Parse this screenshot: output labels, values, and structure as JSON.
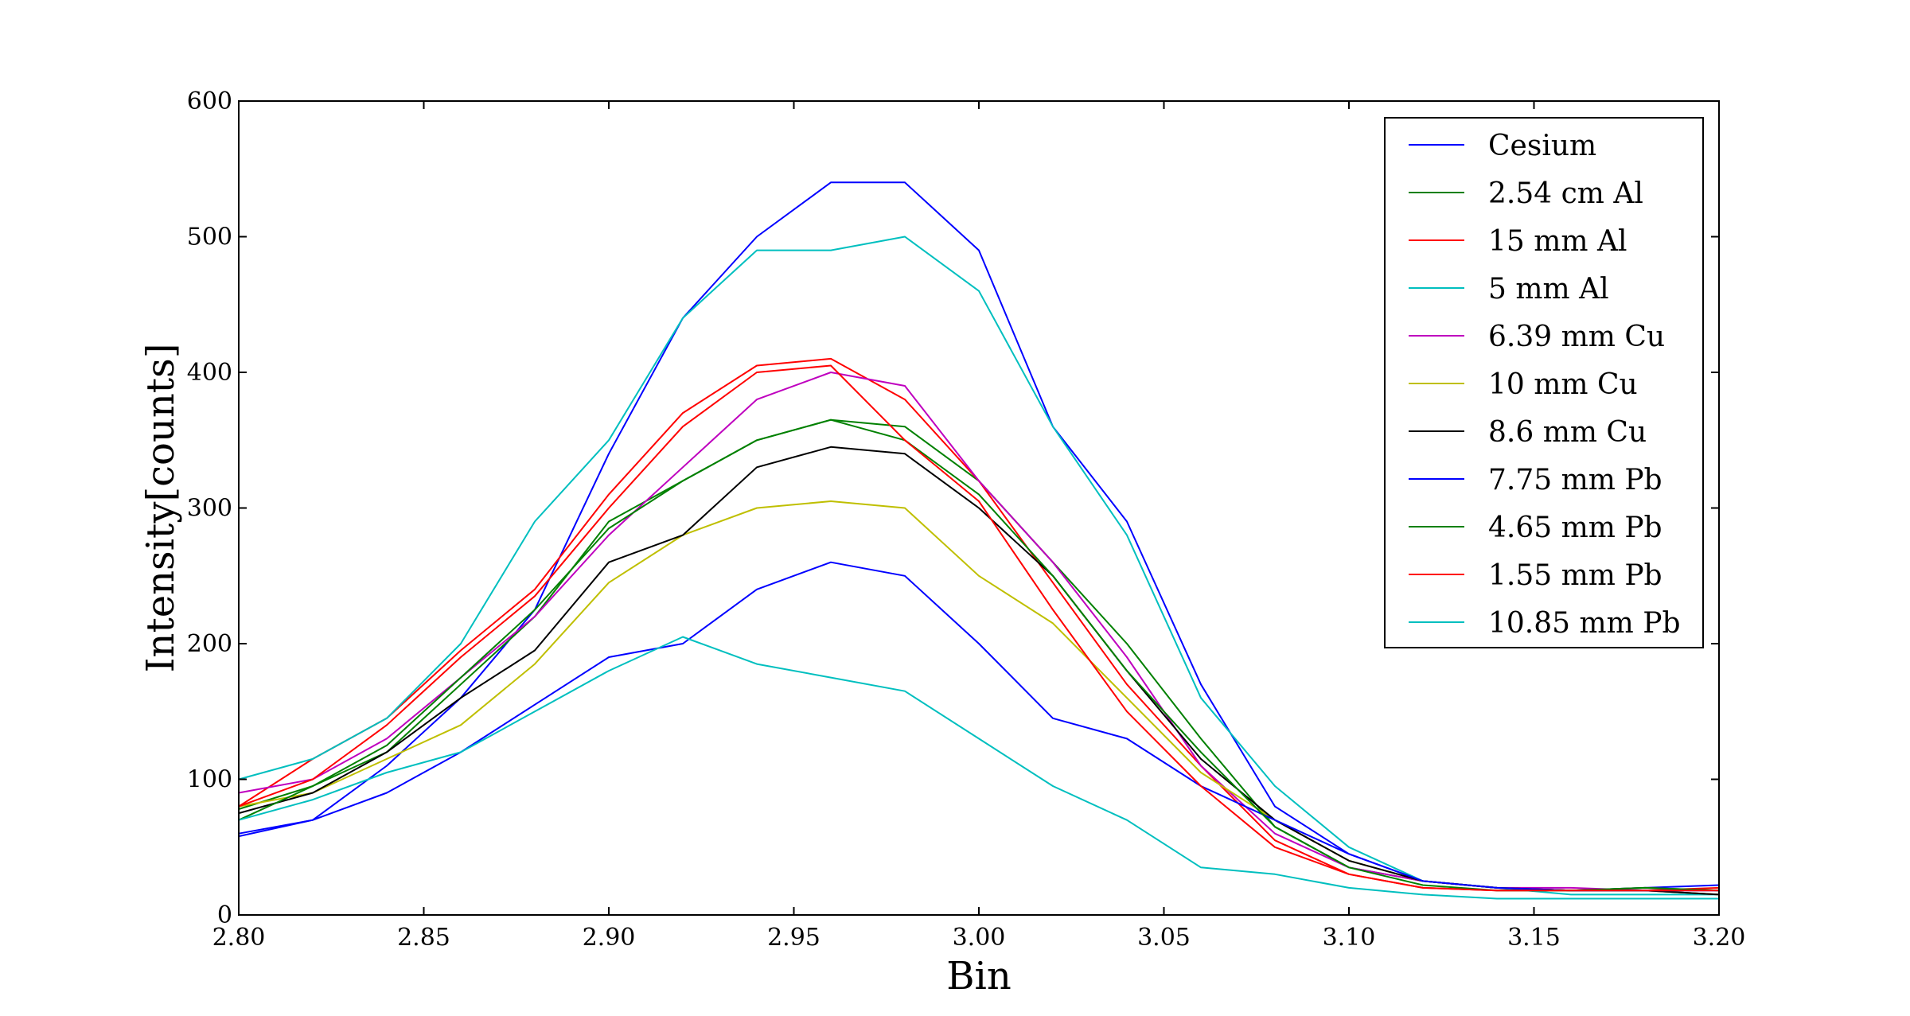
{
  "chart_data": {
    "type": "line",
    "xlabel": "Bin",
    "ylabel": "Intensity[counts]",
    "xlim": [
      2.8,
      3.2
    ],
    "ylim": [
      0,
      600
    ],
    "xticks": [
      "2.80",
      "2.85",
      "2.90",
      "2.95",
      "3.00",
      "3.05",
      "3.10",
      "3.15",
      "3.20"
    ],
    "yticks": [
      "0",
      "100",
      "200",
      "300",
      "400",
      "500",
      "600"
    ],
    "grid": false,
    "legend_position": "top-right",
    "x": [
      2.8,
      2.82,
      2.84,
      2.86,
      2.88,
      2.9,
      2.92,
      2.94,
      2.96,
      2.98,
      3.0,
      3.02,
      3.04,
      3.06,
      3.08,
      3.1,
      3.12,
      3.14,
      3.16,
      3.18,
      3.2
    ],
    "series": [
      {
        "name": "Cesium",
        "color": "#0000ff",
        "values": [
          58,
          70,
          110,
          160,
          225,
          340,
          440,
          500,
          540,
          540,
          490,
          360,
          290,
          170,
          80,
          45,
          25,
          20,
          18,
          20,
          22
        ]
      },
      {
        "name": "2.54 cm Al",
        "color": "#008000",
        "values": [
          78,
          95,
          120,
          170,
          220,
          290,
          320,
          350,
          365,
          360,
          320,
          260,
          200,
          130,
          65,
          35,
          25,
          20,
          18,
          20,
          18
        ]
      },
      {
        "name": "15 mm Al",
        "color": "#ff0000",
        "values": [
          80,
          115,
          145,
          195,
          240,
          310,
          370,
          405,
          410,
          380,
          320,
          245,
          170,
          110,
          55,
          30,
          20,
          18,
          18,
          18,
          20
        ]
      },
      {
        "name": "5 mm Al",
        "color": "#00bfbf",
        "values": [
          100,
          115,
          145,
          200,
          290,
          350,
          440,
          490,
          490,
          500,
          460,
          360,
          280,
          160,
          95,
          50,
          25,
          20,
          15,
          15,
          15
        ]
      },
      {
        "name": "6.39 mm Cu",
        "color": "#bf00bf",
        "values": [
          90,
          100,
          130,
          175,
          220,
          280,
          330,
          380,
          400,
          390,
          320,
          260,
          190,
          110,
          60,
          35,
          25,
          20,
          20,
          18,
          15
        ]
      },
      {
        "name": "10 mm Cu",
        "color": "#bfbf00",
        "values": [
          80,
          90,
          115,
          140,
          185,
          245,
          280,
          300,
          305,
          300,
          250,
          215,
          160,
          105,
          70,
          40,
          25,
          20,
          18,
          18,
          15
        ]
      },
      {
        "name": "8.6 mm Cu",
        "color": "#000000",
        "values": [
          75,
          90,
          120,
          160,
          195,
          260,
          280,
          330,
          345,
          340,
          300,
          250,
          180,
          115,
          70,
          40,
          25,
          20,
          18,
          18,
          15
        ]
      },
      {
        "name": "7.75 mm Pb",
        "color": "#0000ff",
        "values": [
          60,
          70,
          90,
          120,
          155,
          190,
          200,
          240,
          260,
          250,
          200,
          145,
          130,
          95,
          70,
          45,
          25,
          20,
          18,
          18,
          18
        ]
      },
      {
        "name": "4.65 mm Pb",
        "color": "#008000",
        "values": [
          70,
          95,
          125,
          175,
          225,
          285,
          320,
          350,
          365,
          350,
          310,
          250,
          180,
          120,
          65,
          35,
          22,
          18,
          18,
          20,
          18
        ]
      },
      {
        "name": "1.55 mm Pb",
        "color": "#ff0000",
        "values": [
          80,
          100,
          140,
          190,
          235,
          300,
          360,
          400,
          405,
          350,
          305,
          225,
          150,
          95,
          50,
          30,
          20,
          18,
          18,
          18,
          18
        ]
      },
      {
        "name": "10.85 mm Pb",
        "color": "#00bfbf",
        "values": [
          70,
          85,
          105,
          120,
          150,
          180,
          205,
          185,
          175,
          165,
          130,
          95,
          70,
          35,
          30,
          20,
          15,
          12,
          12,
          12,
          12
        ]
      }
    ]
  }
}
